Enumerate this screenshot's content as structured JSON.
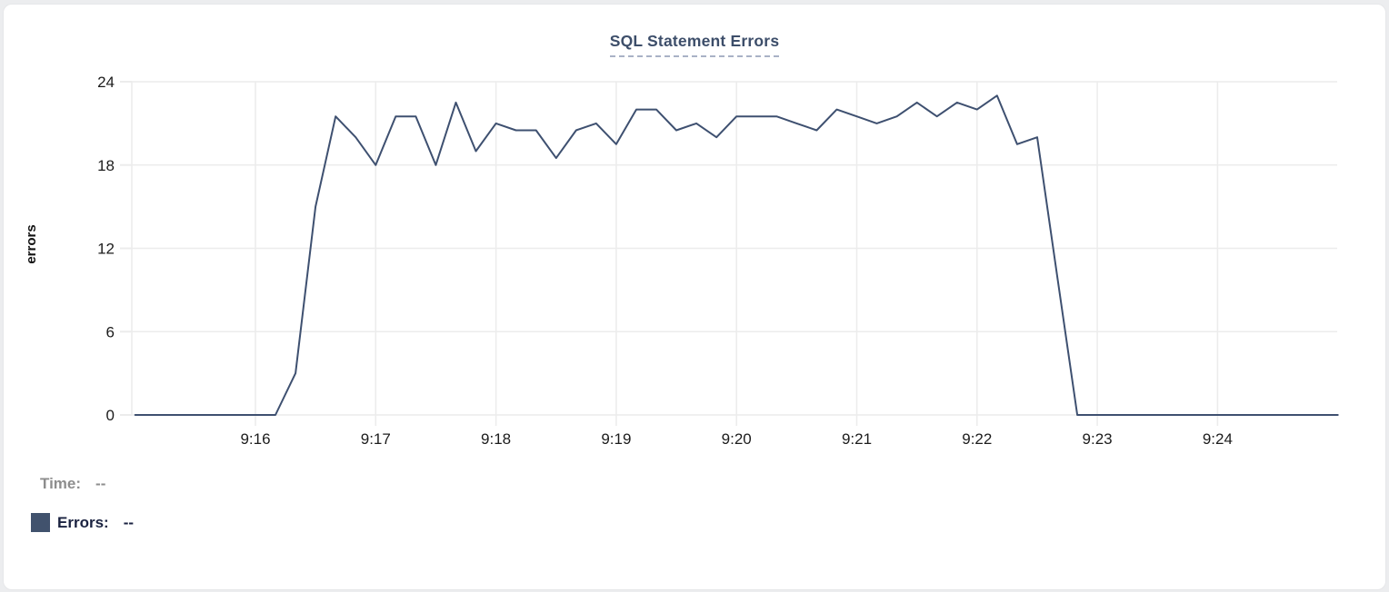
{
  "chart": {
    "title": "SQL Statement Errors",
    "y_axis_label": "errors",
    "tooltip": {
      "time_label": "Time:",
      "time_value": "--",
      "errors_label": "Errors:",
      "errors_value": "--"
    },
    "colors": {
      "line": "#3e5070",
      "legend_swatch": "#41526d",
      "title": "#3d4e6a",
      "title_underline": "#a9b2c6",
      "tooltip_time_text": "#8d8d8d",
      "tooltip_errors_text": "#1a2240",
      "grid": "#ececec",
      "tick_text": "#1c1c1c"
    }
  },
  "chart_data": {
    "type": "line",
    "title": "SQL Statement Errors",
    "xlabel": "",
    "ylabel": "errors",
    "x_start_time": "9:15:00",
    "x_interval_seconds": 10,
    "x_tick_labels": [
      "9:16",
      "9:17",
      "9:18",
      "9:19",
      "9:20",
      "9:21",
      "9:22",
      "9:23",
      "9:24"
    ],
    "x_tick_minutes": [
      1,
      2,
      3,
      4,
      5,
      6,
      7,
      8,
      9
    ],
    "x_range_minutes": [
      0,
      10
    ],
    "y_ticks": [
      0,
      6,
      12,
      18,
      24
    ],
    "ylim": [
      0,
      24
    ],
    "grid": true,
    "legend_position": "bottom-left readout",
    "series": [
      {
        "name": "Errors",
        "color": "#3e5070",
        "values": [
          0,
          0,
          0,
          0,
          0,
          0,
          0,
          0,
          3,
          15,
          21.5,
          20,
          18,
          21.5,
          21.5,
          18,
          22.5,
          19,
          21,
          20.5,
          20.5,
          18.5,
          20.5,
          21,
          19.5,
          22,
          22,
          20.5,
          21,
          20,
          21.5,
          21.5,
          21.5,
          21,
          20.5,
          22,
          21.5,
          21,
          21.5,
          22.5,
          21.5,
          22.5,
          22,
          23,
          19.5,
          20,
          10,
          0,
          0,
          0,
          0,
          0,
          0,
          0,
          0,
          0,
          0,
          0,
          0,
          0,
          0
        ]
      }
    ]
  }
}
